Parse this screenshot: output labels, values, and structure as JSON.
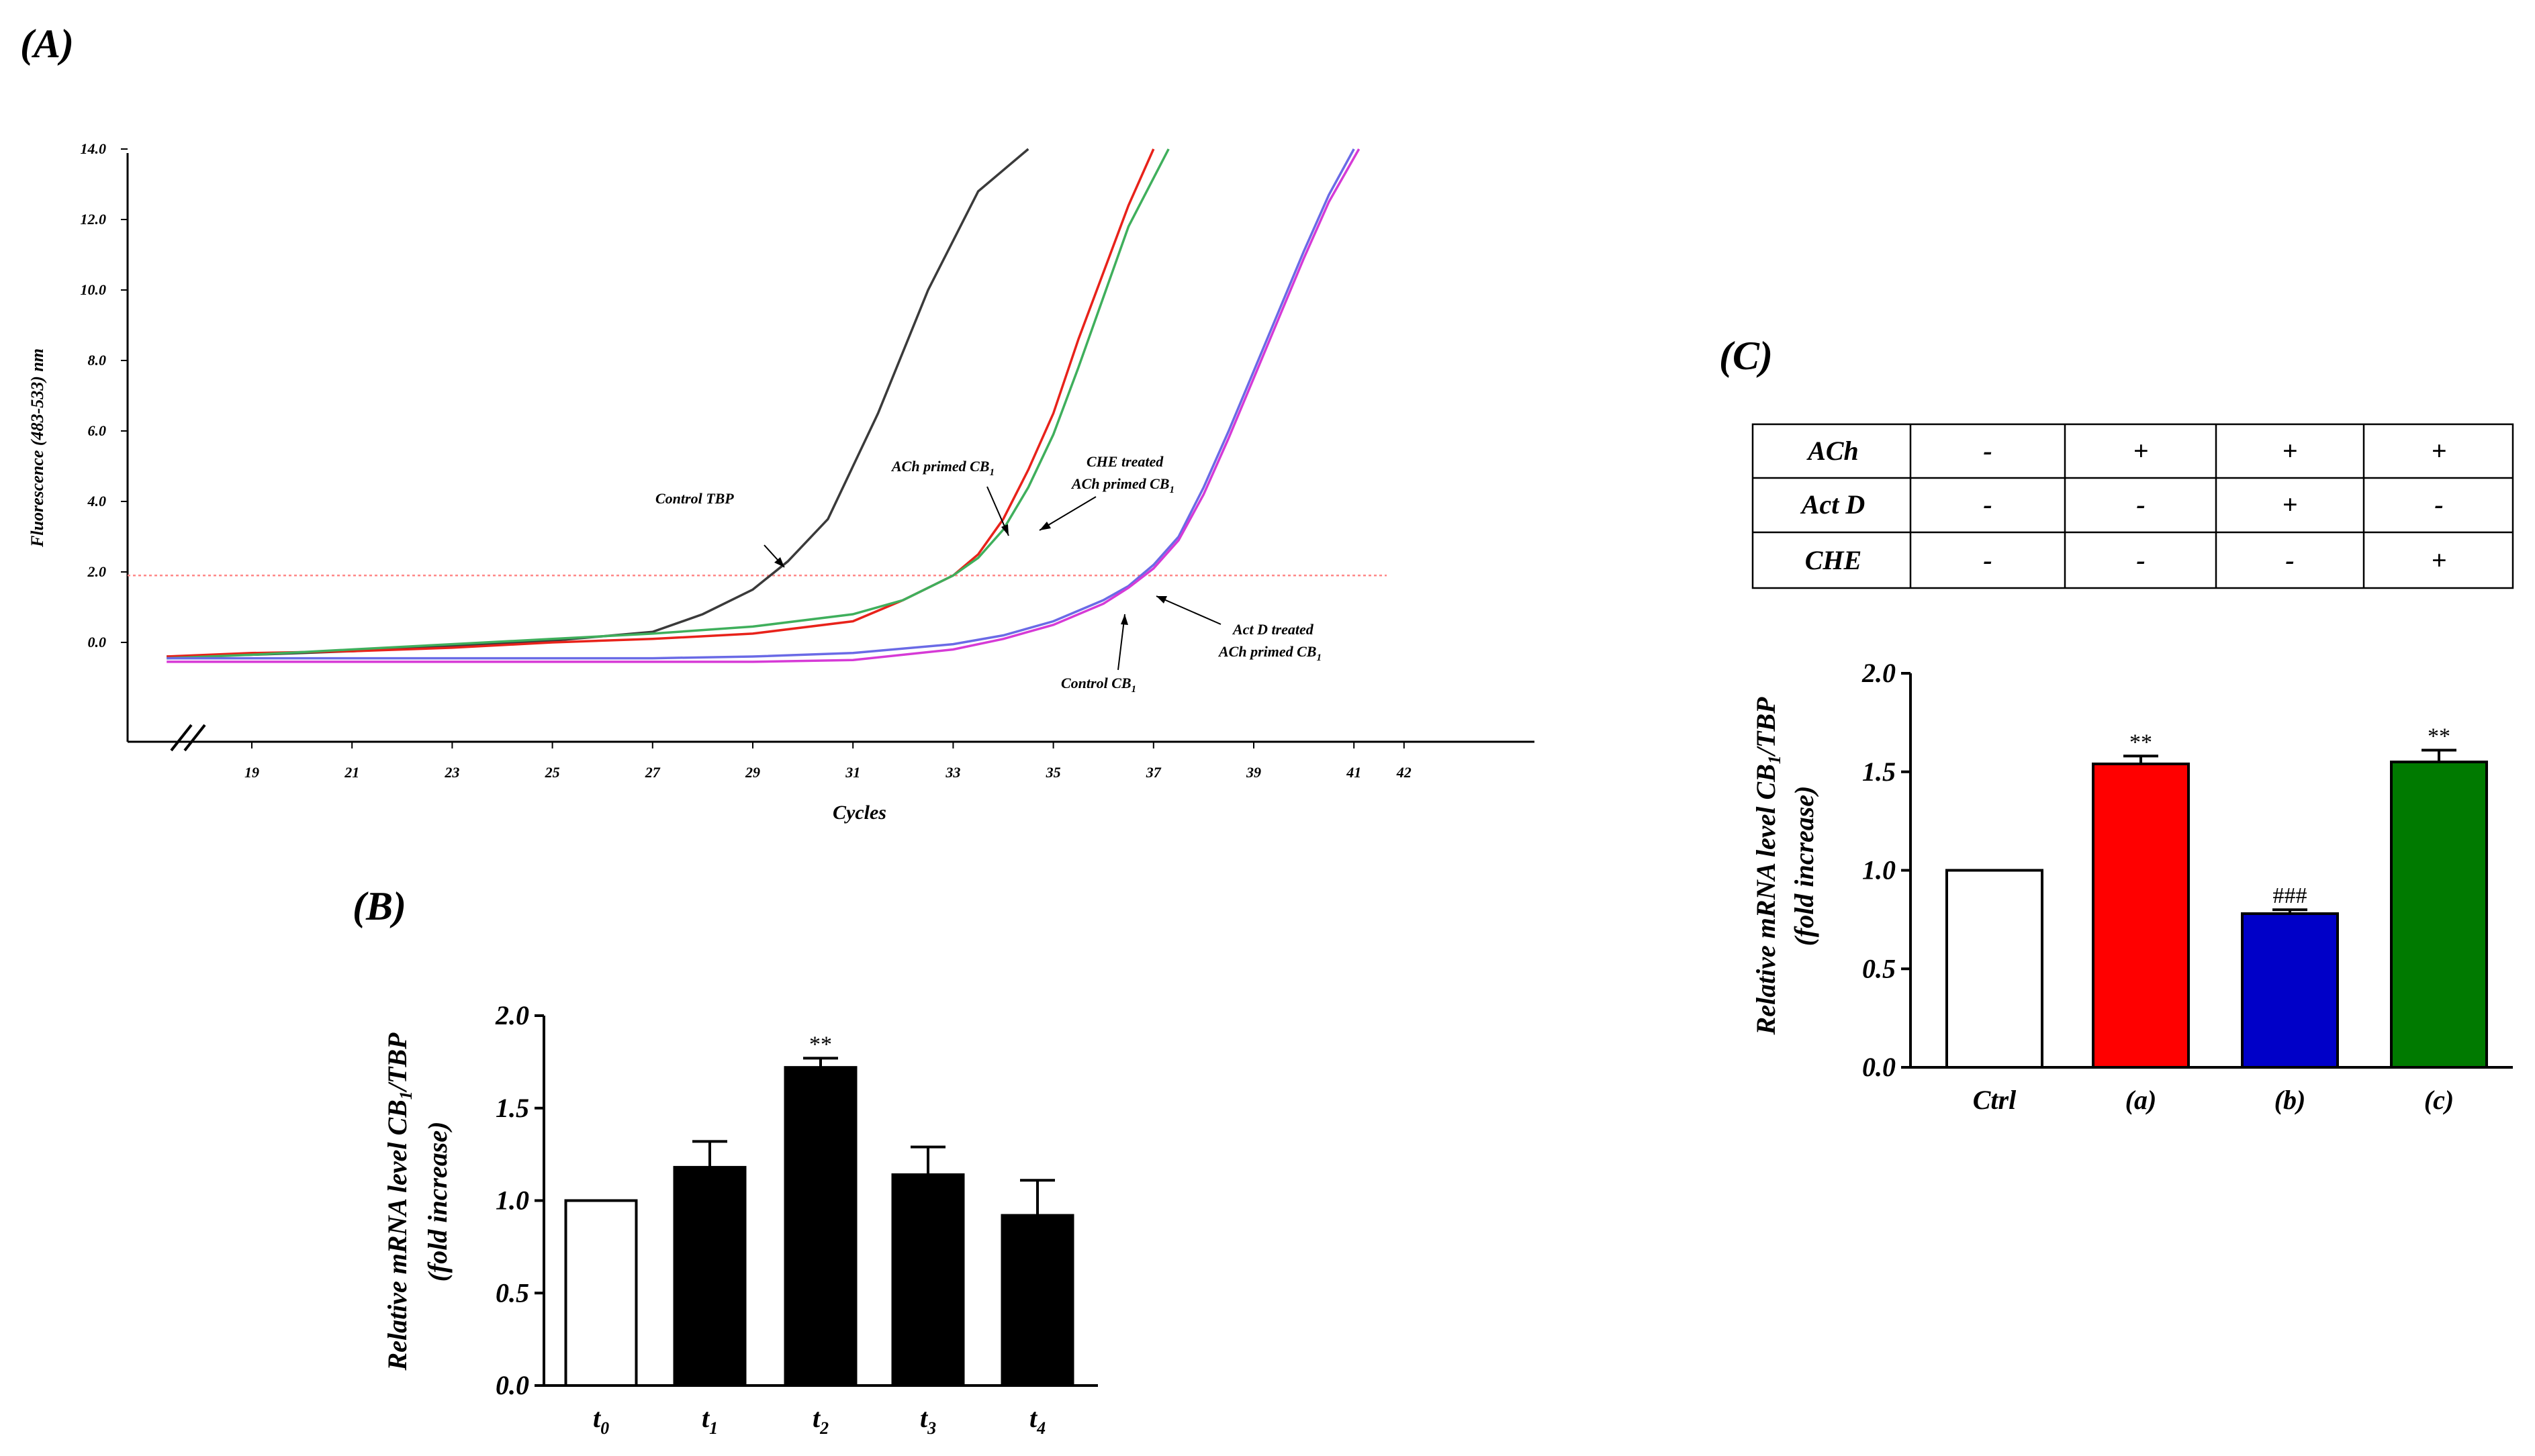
{
  "chart_data": [
    {
      "panel": "(A)",
      "type": "line",
      "xlabel": "Cycles",
      "ylabel": "Fluorescence (483-533) nm",
      "x_ticks": [
        "19",
        "21",
        "23",
        "25",
        "27",
        "29",
        "31",
        "33",
        "35",
        "37",
        "39",
        "41",
        "42"
      ],
      "y_ticks": [
        "0.0",
        "2.0",
        "4.0",
        "6.0",
        "8.0",
        "10.0",
        "12.0",
        "14.0"
      ],
      "threshold": 1.9,
      "series": [
        {
          "name": "Control TBP",
          "color": "#3a3a3a",
          "x": [
            17.3,
            19,
            21,
            23,
            25,
            27,
            28,
            29,
            29.7,
            30.5,
            31.5,
            32.5,
            33.5,
            34.5
          ],
          "y": [
            -0.4,
            -0.35,
            -0.25,
            -0.1,
            0.05,
            0.3,
            0.8,
            1.5,
            2.3,
            3.5,
            6.5,
            10.0,
            12.8,
            14.0
          ]
        },
        {
          "name": "ACh primed CB1",
          "color": "#e8221a",
          "x": [
            17.3,
            19,
            21,
            23,
            25,
            27,
            29,
            31,
            32,
            33,
            33.5,
            34,
            34.5,
            35,
            35.5,
            36,
            36.5,
            37
          ],
          "y": [
            -0.4,
            -0.3,
            -0.25,
            -0.15,
            0.0,
            0.1,
            0.25,
            0.6,
            1.2,
            1.9,
            2.5,
            3.5,
            4.9,
            6.5,
            8.6,
            10.5,
            12.4,
            14.0
          ]
        },
        {
          "name": "CHE treated ACh primed CB1",
          "color": "#3faf5c",
          "x": [
            17.3,
            19,
            21,
            23,
            25,
            27,
            29,
            31,
            32,
            33,
            33.5,
            34,
            34.5,
            35,
            35.5,
            36,
            36.5,
            37.3
          ],
          "y": [
            -0.45,
            -0.35,
            -0.2,
            -0.05,
            0.1,
            0.25,
            0.45,
            0.8,
            1.2,
            1.9,
            2.4,
            3.2,
            4.4,
            5.9,
            7.8,
            9.8,
            11.8,
            14.0
          ]
        },
        {
          "name": "Control CB1",
          "color": "#6a6ae6",
          "x": [
            17.3,
            19,
            21,
            23,
            25,
            27,
            29,
            31,
            33,
            34,
            35,
            36,
            36.5,
            37,
            37.5,
            38,
            38.5,
            39,
            39.5,
            40,
            40.5,
            41
          ],
          "y": [
            -0.45,
            -0.45,
            -0.45,
            -0.45,
            -0.45,
            -0.45,
            -0.4,
            -0.3,
            -0.05,
            0.2,
            0.6,
            1.2,
            1.6,
            2.2,
            3.0,
            4.4,
            6.0,
            7.7,
            9.4,
            11.1,
            12.7,
            14.0
          ]
        },
        {
          "name": "Act D treated ACh primed CB1",
          "color": "#d63ad6",
          "x": [
            17.3,
            19,
            21,
            23,
            25,
            27,
            29,
            31,
            33,
            34,
            35,
            36,
            36.5,
            37,
            37.5,
            38,
            38.5,
            39,
            39.5,
            40,
            40.5,
            41.1
          ],
          "y": [
            -0.55,
            -0.55,
            -0.55,
            -0.55,
            -0.55,
            -0.55,
            -0.55,
            -0.5,
            -0.2,
            0.1,
            0.5,
            1.1,
            1.55,
            2.1,
            2.9,
            4.2,
            5.8,
            7.5,
            9.2,
            10.9,
            12.5,
            14.0
          ]
        }
      ],
      "annotations": [
        "Control TBP",
        "ACh primed CB",
        "CHE treated",
        "ACh primed CB",
        "Act D treated",
        "ACh primed CB",
        "Control CB"
      ],
      "annotation_subscript": "1"
    },
    {
      "panel": "(B)",
      "type": "bar",
      "ylabel_line1": "Relative mRNA level CB",
      "ylabel_sub": "1",
      "ylabel_tail": "/TBP",
      "ylabel_line2": "(fold increase)",
      "categories": [
        {
          "base": "t",
          "sub": "0"
        },
        {
          "base": "t",
          "sub": "1"
        },
        {
          "base": "t",
          "sub": "2"
        },
        {
          "base": "t",
          "sub": "3"
        },
        {
          "base": "t",
          "sub": "4"
        }
      ],
      "values": [
        1.0,
        1.18,
        1.72,
        1.14,
        0.92
      ],
      "errors": [
        0,
        0.14,
        0.05,
        0.15,
        0.19
      ],
      "fills": [
        "#ffffff",
        "#000000",
        "#000000",
        "#000000",
        "#000000"
      ],
      "markers": [
        "",
        "",
        "**",
        "",
        ""
      ],
      "y_ticks": [
        "0.0",
        "0.5",
        "1.0",
        "1.5",
        "2.0"
      ],
      "ylim": [
        0,
        2.0
      ]
    },
    {
      "panel": "(C)",
      "type": "bar",
      "ylabel_line1": "Relative mRNA level CB",
      "ylabel_sub": "1",
      "ylabel_tail": "/TBP",
      "ylabel_line2": "(fold increase)",
      "categories": [
        "Ctrl",
        "(a)",
        "(b)",
        "(c)"
      ],
      "values": [
        1.0,
        1.54,
        0.78,
        1.55
      ],
      "errors": [
        0,
        0.04,
        0.02,
        0.06
      ],
      "fills": [
        "#ffffff",
        "#ff0000",
        "#0000c8",
        "#007a00"
      ],
      "markers": [
        "",
        "**",
        "###",
        "**"
      ],
      "y_ticks": [
        "0.0",
        "0.5",
        "1.0",
        "1.5",
        "2.0"
      ],
      "ylim": [
        0,
        2.0
      ],
      "table": {
        "rows": [
          {
            "label": "ACh",
            "cells": [
              "-",
              "+",
              "+",
              "+"
            ]
          },
          {
            "label": "Act D",
            "cells": [
              "-",
              "-",
              "+",
              "-"
            ]
          },
          {
            "label": "CHE",
            "cells": [
              "-",
              "-",
              "-",
              "+"
            ]
          }
        ]
      }
    }
  ]
}
